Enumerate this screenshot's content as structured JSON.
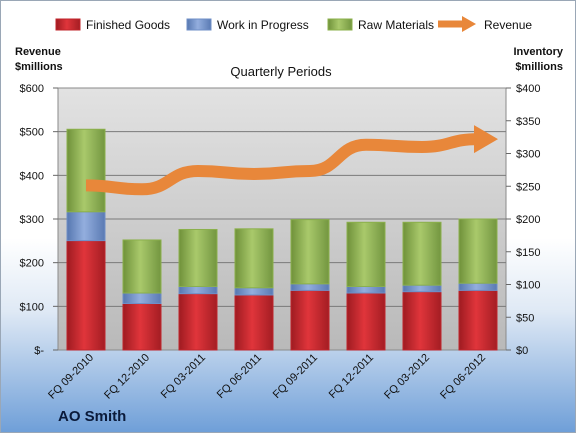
{
  "company": "AO Smith",
  "colors": {
    "finished_goods": "#c0242b",
    "work_in_progress": "#6f8fc7",
    "raw_materials": "#8bb04b",
    "revenue": "#e8873a"
  },
  "chart_data": {
    "type": "bar",
    "stacked": true,
    "subtitle": "Quarterly Periods",
    "categories": [
      "FQ 09-2010",
      "FQ 12-2010",
      "FQ 03-2011",
      "FQ 06-2011",
      "FQ 09-2011",
      "FQ 12-2011",
      "FQ 03-2012",
      "FQ 06-2012"
    ],
    "ylabel_left": [
      "Revenue",
      "$millions"
    ],
    "ylabel_right": [
      "Inventory",
      "$millions"
    ],
    "ylim_left": [
      0,
      600
    ],
    "ylim_right": [
      0,
      400
    ],
    "left_ticks": [
      "$-",
      "$100",
      "$200",
      "$300",
      "$400",
      "$500",
      "$600"
    ],
    "right_ticks": [
      "$0",
      "$50",
      "$100",
      "$150",
      "$200",
      "$250",
      "$300",
      "$350",
      "$400"
    ],
    "grid": true,
    "legend_position": "top",
    "series": [
      {
        "name": "Finished Goods",
        "axis": "right",
        "values": [
          167,
          71,
          86,
          84,
          91,
          87,
          89,
          91
        ]
      },
      {
        "name": "Work in Progress",
        "axis": "right",
        "values": [
          44,
          16,
          11,
          11,
          10,
          10,
          10,
          11
        ]
      },
      {
        "name": "Raw Materials",
        "axis": "right",
        "values": [
          126,
          81,
          87,
          90,
          98,
          98,
          96,
          98
        ]
      },
      {
        "name": "Revenue",
        "axis": "left",
        "type": "line",
        "values": [
          377,
          368,
          410,
          403,
          410,
          470,
          465,
          483
        ]
      }
    ]
  }
}
